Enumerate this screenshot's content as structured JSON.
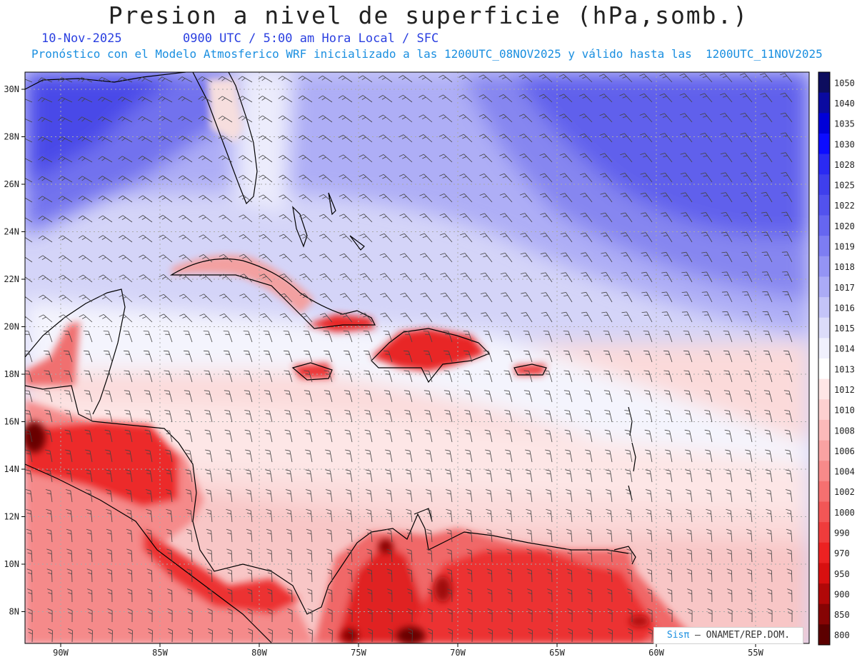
{
  "header": {
    "title": "Presion a nivel de superficie (hPa,somb.)",
    "date": "10-Nov-2025",
    "time_info": "0900 UTC / 5:00 am Hora Local / SFC",
    "model_info": "Pronóstico con el Modelo Atmosferico WRF inicializado a las 1200UTC_08NOV2025 y válido hasta las  1200UTC_11NOV2025"
  },
  "map": {
    "lat_labels": [
      "30N",
      "28N",
      "26N",
      "24N",
      "22N",
      "20N",
      "18N",
      "16N",
      "14N",
      "12N",
      "10N",
      "8N"
    ],
    "lon_labels": [
      "90W",
      "85W",
      "80W",
      "75W",
      "70W",
      "65W",
      "60W",
      "55W"
    ]
  },
  "colorbar": {
    "levels": [
      "1050",
      "1040",
      "1035",
      "1030",
      "1028",
      "1025",
      "1022",
      "1020",
      "1019",
      "1018",
      "1017",
      "1016",
      "1015",
      "1014",
      "1013",
      "1012",
      "1010",
      "1008",
      "1006",
      "1004",
      "1002",
      "1000",
      "990",
      "970",
      "950",
      "900",
      "850",
      "800"
    ],
    "colors": [
      "#0d0d5e",
      "#0a0aa0",
      "#0000d8",
      "#0c0cff",
      "#2a2af2",
      "#3f3fec",
      "#5252ee",
      "#6666f0",
      "#7d7df2",
      "#9494f4",
      "#ababf6",
      "#c4c4f8",
      "#dcdcfa",
      "#f0f0fd",
      "#ffffff",
      "#ffe6e6",
      "#fdd0d0",
      "#fbbaba",
      "#f9a2a2",
      "#f78a8a",
      "#f57070",
      "#f25656",
      "#ef3c3c",
      "#ec2222",
      "#d81010",
      "#b00808",
      "#860404",
      "#5c0000"
    ]
  },
  "credit": {
    "brand": "Sisπ",
    "text": " – ONAMET/REP.DOM."
  }
}
